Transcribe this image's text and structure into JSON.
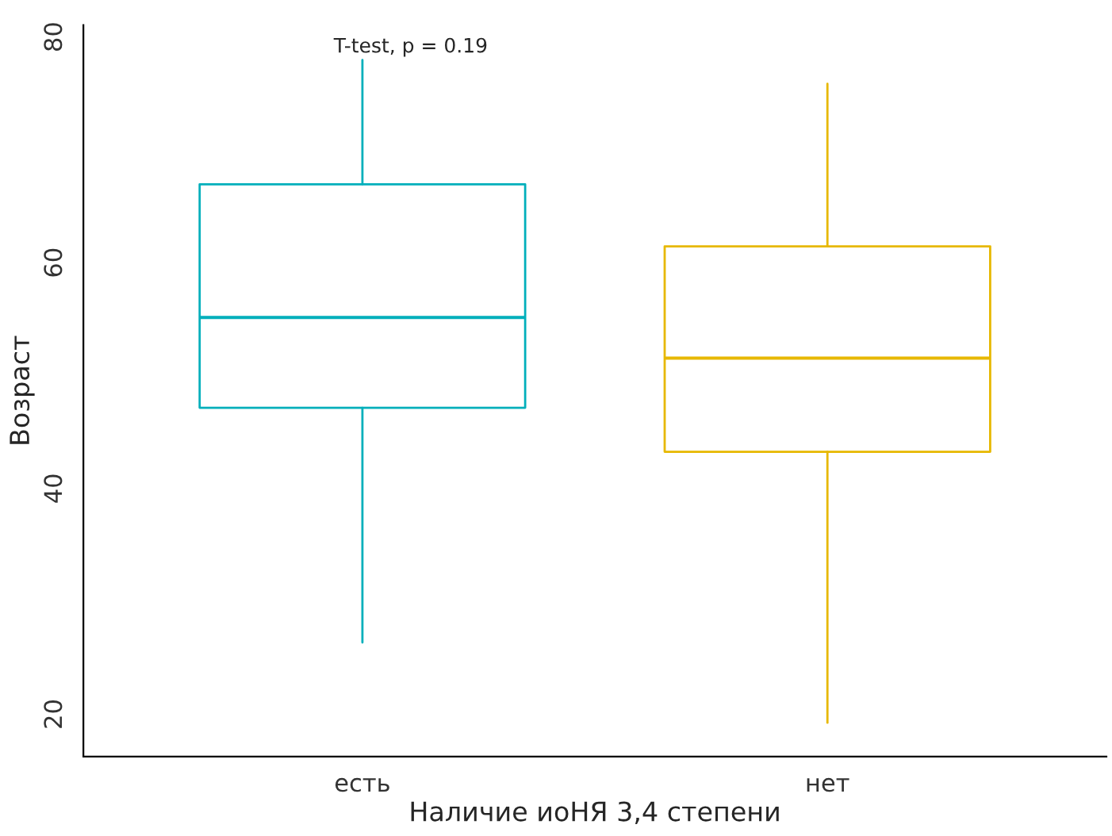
{
  "chart_data": {
    "type": "box",
    "xlabel": "Наличие иоНЯ 3,4 степени",
    "ylabel": "Возраст",
    "categories": [
      "есть",
      "нет"
    ],
    "boxes": [
      {
        "low": 25.8,
        "q1": 46.6,
        "median": 54.6,
        "q3": 66.4,
        "high": 77.4
      },
      {
        "low": 18.7,
        "q1": 42.7,
        "median": 51.0,
        "q3": 60.9,
        "high": 75.3
      }
    ],
    "colors": [
      "#00afbb",
      "#e7b800"
    ],
    "ylim": [
      15.7,
      80.5
    ],
    "yticks": [
      20,
      40,
      60,
      80
    ],
    "annotations": [
      "T-test, p = 0.19"
    ],
    "grid": false,
    "legend": false
  }
}
